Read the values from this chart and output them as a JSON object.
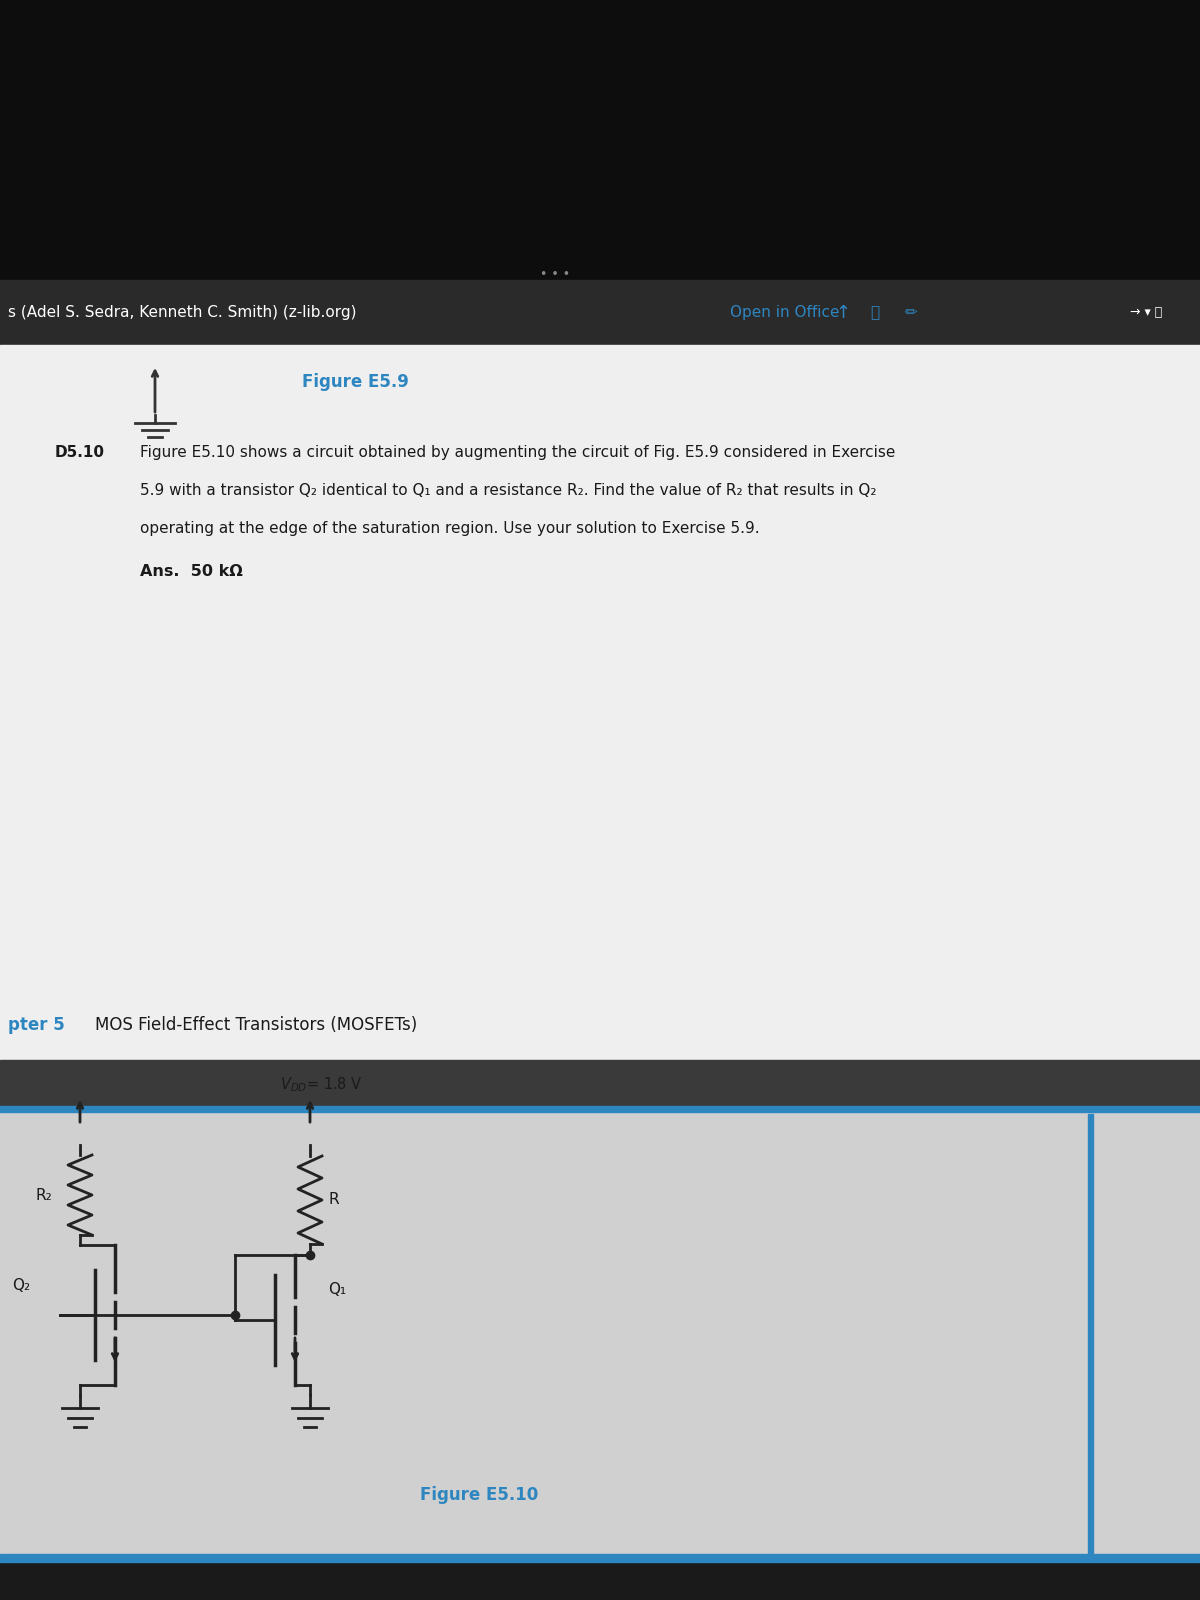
{
  "bg_top": "#0d0d0d",
  "bg_toolbar": "#2a2a2a",
  "bg_page1": "#efefef",
  "bg_sep": "#3a3a3a",
  "bg_page2": "#d0d0d0",
  "bg_bottom": "#1a1a1a",
  "toolbar_text": "s (Adel S. Sedra, Kenneth C. Smith) (z-lib.org)",
  "toolbar_right": "Open in Office",
  "figure_e59_label": "Figure E5.9",
  "exercise_label": "D5.10",
  "exercise_lines": [
    "Figure E5.10 shows a circuit obtained by augmenting the circuit of Fig. E5.9 considered in Exercise",
    "5.9 with a transistor Q₂ identical to Q₁ and a resistance R₂. Find the value of R₂ that results in Q₂",
    "operating at the edge of the saturation region. Use your solution to Exercise 5.9."
  ],
  "ans_text": "Ans.  50 kΩ",
  "chapter_label": "pter 5",
  "chapter_text": "MOS Field-Effect Transistors (MOSFETs)",
  "vdd_text": "V$_{DD}$= 1.8 V",
  "r_label": "R",
  "r2_label": "R₂",
  "q1_label": "Q₁",
  "q2_label": "Q₂",
  "figure_e510_label": "Figure E5.10",
  "text_color": "#1a1a1a",
  "blue_color": "#2e86c1",
  "wire_color": "#222222"
}
